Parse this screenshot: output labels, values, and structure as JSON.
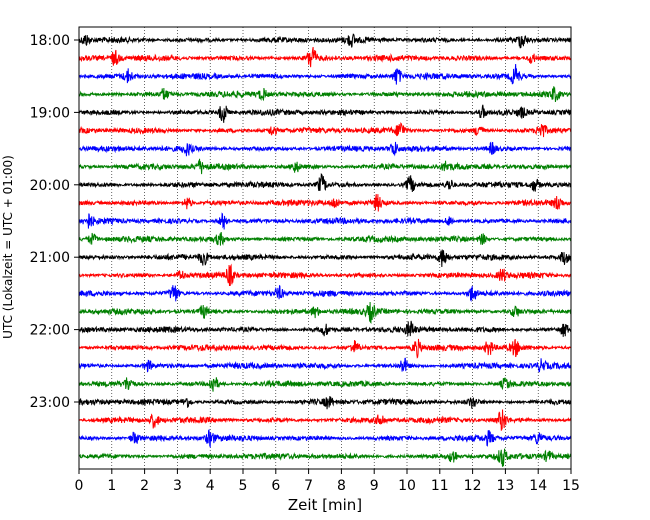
{
  "chart_data": {
    "type": "line",
    "title": "",
    "xlabel": "Zeit  [min]",
    "ylabel": "UTC (Lokalzeit = UTC + 01:00)",
    "xlim": [
      0,
      15
    ],
    "x_ticks": [
      0,
      1,
      2,
      3,
      4,
      5,
      6,
      7,
      8,
      9,
      10,
      11,
      12,
      13,
      14,
      15
    ],
    "x_tick_labels": [
      "0",
      "1",
      "2",
      "3",
      "4",
      "5",
      "6",
      "7",
      "8",
      "9",
      "10",
      "11",
      "12",
      "13",
      "14",
      "15"
    ],
    "y_tick_labels": [
      "18:00",
      "19:00",
      "20:00",
      "21:00",
      "22:00",
      "23:00"
    ],
    "x_grid": true,
    "trace_colors": [
      "#000000",
      "#ff0000",
      "#0000ff",
      "#008000"
    ],
    "traces": [
      {
        "start": "18:00",
        "color": "#000000",
        "events": [
          [
            0.2,
            5
          ],
          [
            8.3,
            5
          ],
          [
            13.5,
            7
          ]
        ]
      },
      {
        "start": "18:15",
        "color": "#ff0000",
        "events": [
          [
            1.1,
            7
          ],
          [
            7.1,
            12
          ],
          [
            13.8,
            5
          ]
        ]
      },
      {
        "start": "18:30",
        "color": "#0000ff",
        "events": [
          [
            1.5,
            6
          ],
          [
            9.7,
            8
          ],
          [
            13.3,
            10
          ]
        ]
      },
      {
        "start": "18:45",
        "color": "#008000",
        "events": [
          [
            2.6,
            5
          ],
          [
            5.6,
            5
          ],
          [
            14.5,
            6
          ]
        ]
      },
      {
        "start": "19:00",
        "color": "#000000",
        "events": [
          [
            4.4,
            10
          ],
          [
            12.3,
            6
          ],
          [
            13.5,
            4
          ]
        ]
      },
      {
        "start": "19:15",
        "color": "#ff0000",
        "events": [
          [
            5.9,
            5
          ],
          [
            9.8,
            8
          ],
          [
            12.2,
            6
          ],
          [
            14.1,
            7
          ]
        ]
      },
      {
        "start": "19:30",
        "color": "#0000ff",
        "events": [
          [
            3.3,
            5
          ],
          [
            9.6,
            6
          ],
          [
            12.6,
            5
          ]
        ]
      },
      {
        "start": "19:45",
        "color": "#008000",
        "events": [
          [
            3.7,
            6
          ],
          [
            6.6,
            5
          ],
          [
            11.2,
            4
          ]
        ]
      },
      {
        "start": "20:00",
        "color": "#000000",
        "events": [
          [
            7.4,
            9
          ],
          [
            10.1,
            8
          ],
          [
            11.3,
            5
          ],
          [
            13.9,
            6
          ]
        ]
      },
      {
        "start": "20:15",
        "color": "#ff0000",
        "events": [
          [
            3.3,
            6
          ],
          [
            7.8,
            5
          ],
          [
            9.1,
            7
          ],
          [
            14.6,
            6
          ]
        ]
      },
      {
        "start": "20:30",
        "color": "#0000ff",
        "events": [
          [
            0.3,
            6
          ],
          [
            4.4,
            8
          ],
          [
            11.3,
            5
          ]
        ]
      },
      {
        "start": "20:45",
        "color": "#008000",
        "events": [
          [
            0.4,
            5
          ],
          [
            4.3,
            5
          ],
          [
            12.3,
            5
          ]
        ]
      },
      {
        "start": "21:00",
        "color": "#000000",
        "events": [
          [
            3.8,
            7
          ],
          [
            11.1,
            9
          ],
          [
            14.8,
            6
          ]
        ]
      },
      {
        "start": "21:15",
        "color": "#ff0000",
        "events": [
          [
            3.1,
            5
          ],
          [
            4.6,
            9
          ],
          [
            12.9,
            6
          ]
        ]
      },
      {
        "start": "21:30",
        "color": "#0000ff",
        "events": [
          [
            2.9,
            9
          ],
          [
            6.1,
            6
          ],
          [
            12.0,
            8
          ]
        ]
      },
      {
        "start": "21:45",
        "color": "#008000",
        "events": [
          [
            3.8,
            6
          ],
          [
            7.2,
            5
          ],
          [
            8.9,
            8
          ],
          [
            13.3,
            5
          ]
        ]
      },
      {
        "start": "22:00",
        "color": "#000000",
        "events": [
          [
            7.5,
            5
          ],
          [
            10.1,
            7
          ],
          [
            14.8,
            6
          ]
        ]
      },
      {
        "start": "22:15",
        "color": "#ff0000",
        "events": [
          [
            8.4,
            6
          ],
          [
            10.3,
            8
          ],
          [
            12.5,
            7
          ],
          [
            13.3,
            7
          ]
        ]
      },
      {
        "start": "22:30",
        "color": "#0000ff",
        "events": [
          [
            2.1,
            5
          ],
          [
            9.9,
            7
          ],
          [
            14.1,
            5
          ]
        ]
      },
      {
        "start": "22:45",
        "color": "#008000",
        "events": [
          [
            1.5,
            6
          ],
          [
            4.1,
            9
          ],
          [
            13.0,
            5
          ]
        ]
      },
      {
        "start": "23:00",
        "color": "#000000",
        "events": [
          [
            3.3,
            5
          ],
          [
            7.6,
            5
          ],
          [
            12.0,
            5
          ]
        ]
      },
      {
        "start": "23:15",
        "color": "#ff0000",
        "events": [
          [
            2.3,
            7
          ],
          [
            9.2,
            6
          ],
          [
            12.9,
            10
          ]
        ]
      },
      {
        "start": "23:30",
        "color": "#0000ff",
        "events": [
          [
            1.7,
            6
          ],
          [
            4.0,
            7
          ],
          [
            12.5,
            6
          ],
          [
            14.0,
            5
          ]
        ]
      },
      {
        "start": "23:45",
        "color": "#008000",
        "events": [
          [
            11.4,
            7
          ],
          [
            12.9,
            8
          ],
          [
            14.3,
            5
          ]
        ]
      }
    ]
  }
}
